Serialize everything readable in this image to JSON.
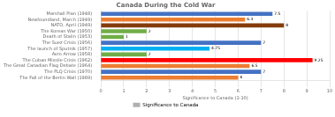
{
  "chart_data": {
    "type": "bar",
    "orientation": "horizontal",
    "title": "Canada During the Cold War",
    "xlabel": "Significance to Canada (1-10)",
    "categories": [
      "Marshall Plan (1948)",
      "Newfoundland, March (1949)",
      "NATO, April (1949)",
      "The Korean War (1950)",
      "Death of Stalin (1953)",
      "The Suez Crisis (1956)",
      "The launch of Sputnik (1957)",
      "Avro Arrow (1958)",
      "The Cuban Missile Crisis (1962)",
      "The Great Canadian Flag Debate (1964)",
      "The FLQ Crisis (1970)",
      "The Fall of the Berlin Wall (1989)"
    ],
    "series": [
      {
        "name": "Significance to Canada",
        "color": "#B0B0B0",
        "colors": [
          "#4472C4",
          "#ED7D31",
          "#843C0C",
          "#70AD47",
          "#70AD47",
          "#4472C4",
          "#00B0F0",
          "#70AD47",
          "#FF0000",
          "#ED7D31",
          "#4472C4",
          "#ED7D31"
        ],
        "values": [
          7.5,
          6.3,
          8,
          2,
          1,
          7,
          4.75,
          2,
          9.25,
          6.5,
          7,
          6
        ]
      }
    ],
    "xlim": [
      0,
      10
    ],
    "xticks": [
      0,
      1,
      2,
      3,
      4,
      5,
      6,
      7,
      8,
      9,
      10
    ],
    "grid": true,
    "legend": "bottom",
    "data_labels": true
  }
}
